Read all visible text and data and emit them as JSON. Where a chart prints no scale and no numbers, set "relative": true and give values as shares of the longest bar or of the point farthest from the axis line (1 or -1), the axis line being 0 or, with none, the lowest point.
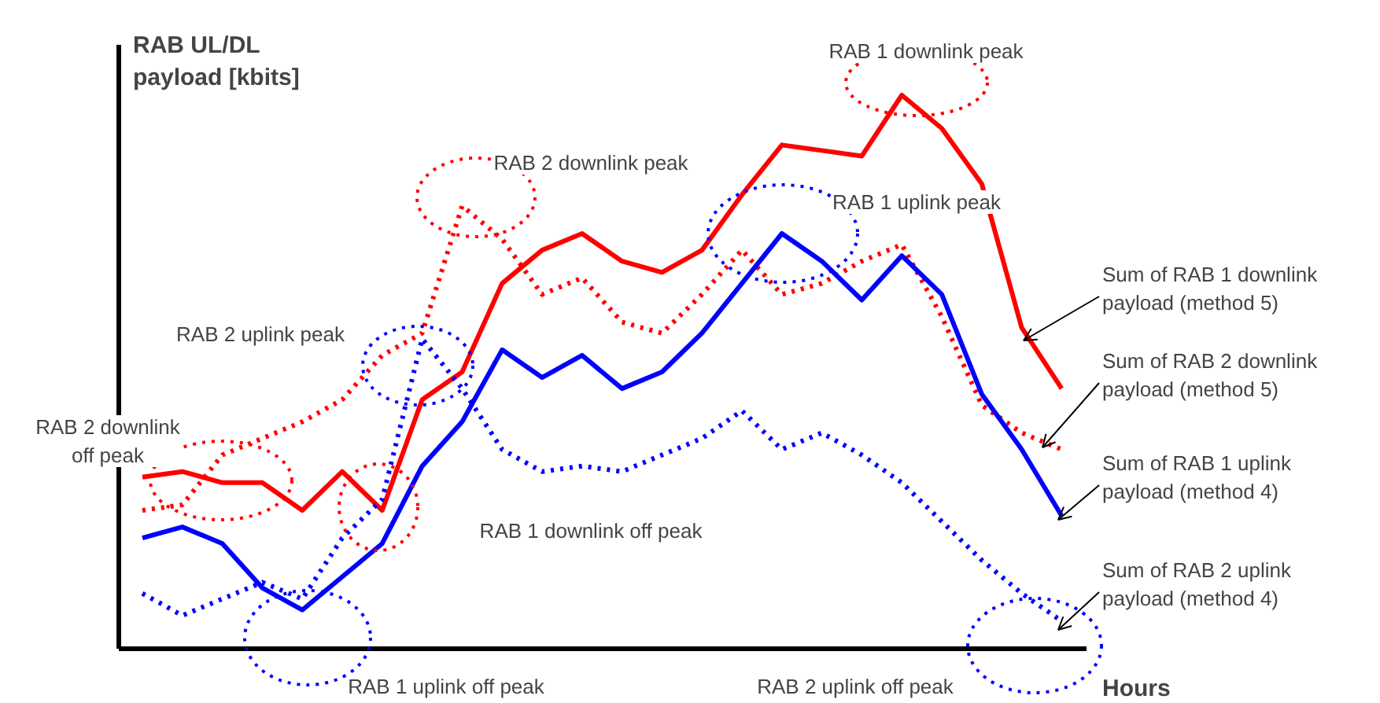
{
  "chart_data": {
    "type": "line",
    "relative": true,
    "xlabel": "Hours",
    "ylabel": "RAB UL/DL payload [kbits]",
    "categories": [
      null,
      null,
      null,
      null,
      null,
      null,
      null,
      null,
      null,
      null,
      null,
      null,
      null,
      null,
      null,
      null,
      null,
      null,
      null,
      null,
      null,
      null,
      null,
      null
    ],
    "series": [
      {
        "name": "Sum of RAB 1 downlink payload (method 5)",
        "color": "#ff0000",
        "line_style": "solid",
        "values": [
          0.31,
          0.32,
          0.3,
          0.3,
          0.25,
          0.32,
          0.25,
          0.45,
          0.5,
          0.66,
          0.72,
          0.75,
          0.7,
          0.68,
          0.72,
          0.82,
          0.91,
          0.9,
          0.89,
          1.0,
          0.94,
          0.84,
          0.58,
          0.47
        ]
      },
      {
        "name": "Sum of RAB 2 downlink payload (method 5)",
        "color": "#ff0000",
        "line_style": "dotted",
        "values": [
          0.25,
          0.26,
          0.35,
          0.38,
          0.41,
          0.45,
          0.53,
          0.57,
          0.8,
          0.74,
          0.64,
          0.67,
          0.59,
          0.57,
          0.64,
          0.72,
          0.64,
          0.66,
          0.7,
          0.73,
          0.6,
          0.44,
          0.39,
          0.36
        ]
      },
      {
        "name": "Sum of RAB 1 uplink payload (method 4)",
        "color": "#0000ff",
        "line_style": "solid",
        "values": [
          0.2,
          0.22,
          0.19,
          0.11,
          0.07,
          0.13,
          0.19,
          0.33,
          0.41,
          0.54,
          0.49,
          0.53,
          0.47,
          0.5,
          0.57,
          0.66,
          0.75,
          0.7,
          0.63,
          0.71,
          0.64,
          0.46,
          0.36,
          0.24
        ]
      },
      {
        "name": "Sum of RAB 2 uplink payload (method 4)",
        "color": "#0000ff",
        "line_style": "dotted",
        "values": [
          0.1,
          0.06,
          0.09,
          0.12,
          0.09,
          0.2,
          0.27,
          0.56,
          0.47,
          0.36,
          0.32,
          0.33,
          0.32,
          0.35,
          0.38,
          0.43,
          0.36,
          0.39,
          0.35,
          0.3,
          0.23,
          0.16,
          0.1,
          0.05
        ]
      }
    ],
    "annotations": [
      "RAB 1 downlink peak",
      "RAB 2 downlink peak",
      "RAB 1 uplink peak",
      "RAB 2 uplink peak",
      "RAB 2 downlink\noff peak",
      "RAB 1 downlink off peak",
      "RAB 1 uplink off peak",
      "RAB 2 uplink off peak"
    ]
  }
}
